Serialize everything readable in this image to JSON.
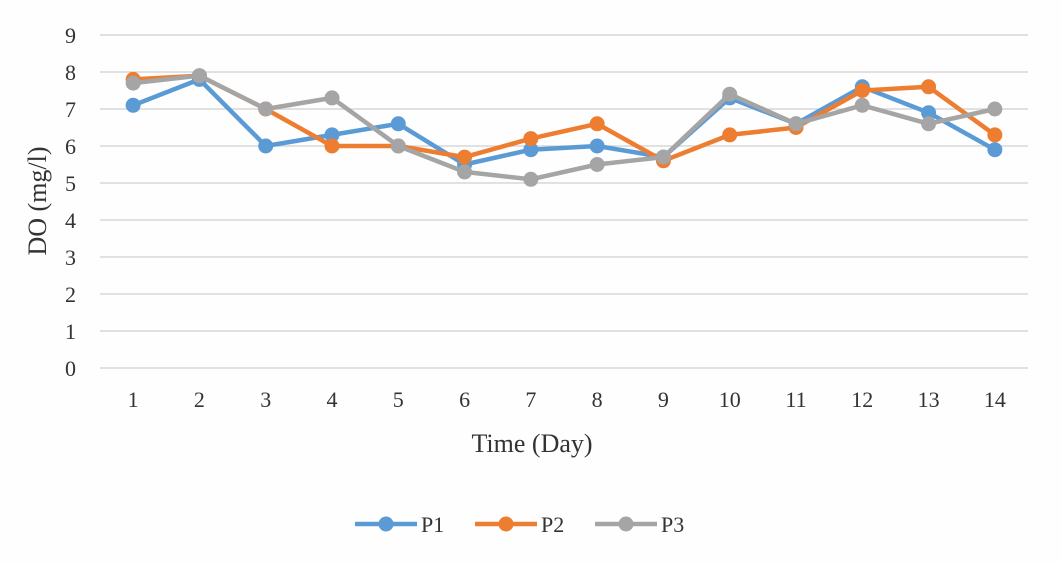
{
  "chart_data": {
    "type": "line",
    "title": "",
    "xlabel": "Time (Day)",
    "ylabel": "DO (mg/l)",
    "categories": [
      "1",
      "2",
      "3",
      "4",
      "5",
      "6",
      "7",
      "8",
      "9",
      "10",
      "11",
      "12",
      "13",
      "14"
    ],
    "ylim": [
      0,
      9
    ],
    "yticks": [
      "0",
      "1",
      "2",
      "3",
      "4",
      "5",
      "6",
      "7",
      "8",
      "9"
    ],
    "grid": true,
    "legend_position": "bottom",
    "series": [
      {
        "name": "P1",
        "color": "#5b9bd5",
        "values": [
          7.1,
          7.8,
          6.0,
          6.3,
          6.6,
          5.5,
          5.9,
          6.0,
          5.7,
          7.3,
          6.6,
          7.6,
          6.9,
          5.9
        ]
      },
      {
        "name": "P2",
        "color": "#ed7d31",
        "values": [
          7.8,
          7.9,
          7.0,
          6.0,
          6.0,
          5.7,
          6.2,
          6.6,
          5.6,
          6.3,
          6.5,
          7.5,
          7.6,
          6.3
        ]
      },
      {
        "name": "P3",
        "color": "#a5a5a5",
        "values": [
          7.7,
          7.9,
          7.0,
          7.3,
          6.0,
          5.3,
          5.1,
          5.5,
          5.7,
          7.4,
          6.6,
          7.1,
          6.6,
          7.0
        ]
      }
    ]
  }
}
